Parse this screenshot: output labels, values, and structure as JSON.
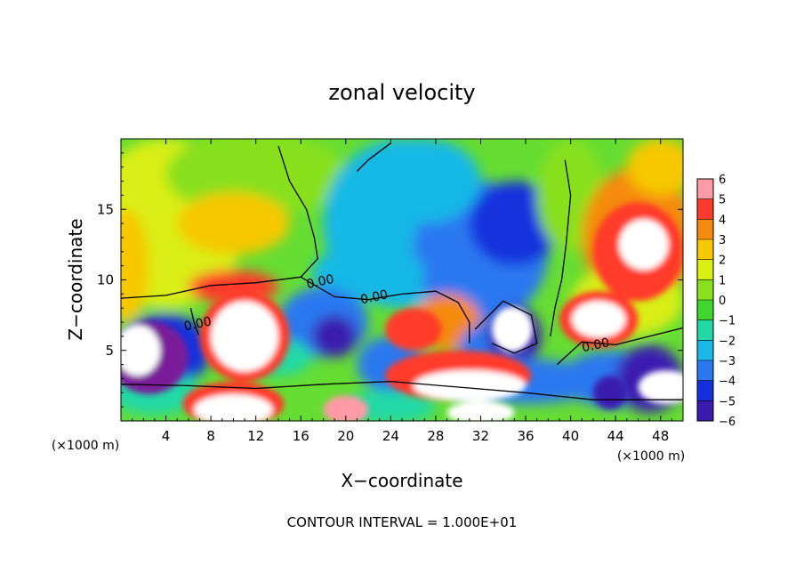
{
  "chart_data": {
    "type": "heatmap",
    "title": "zonal velocity",
    "xlabel": "X−coordinate",
    "ylabel": "Z−coordinate",
    "x_unit_label_left": "(×1000 m)",
    "x_unit_label_right": "(×1000 m)",
    "footer": "CONTOUR INTERVAL = 1.000E+01",
    "xlim": [
      0,
      50
    ],
    "ylim": [
      0,
      20
    ],
    "x_ticks": [
      4,
      8,
      12,
      16,
      20,
      24,
      28,
      32,
      36,
      40,
      44,
      48
    ],
    "y_ticks": [
      5,
      10,
      15
    ],
    "colorbar": {
      "min": -6,
      "max": 6,
      "labels": [
        "6",
        "5",
        "4",
        "3",
        "2",
        "1",
        "0",
        "−1",
        "−2",
        "−3",
        "−4",
        "−5",
        "−6"
      ]
    },
    "contour_labels": [
      {
        "text": "0.00",
        "x": 17.8,
        "y": 9.6
      },
      {
        "text": "0.00",
        "x": 22.6,
        "y": 8.5
      },
      {
        "text": "0.00",
        "x": 6.9,
        "y": 6.6
      },
      {
        "text": "0.00",
        "x": 42.3,
        "y": 5.1
      }
    ],
    "features": [
      {
        "name": "upper-left-warm",
        "x": 10,
        "y": 14,
        "value": 3
      },
      {
        "name": "left-jet-core",
        "x": 11,
        "y": 6,
        "value": 6
      },
      {
        "name": "upper-right-jet",
        "x": 46,
        "y": 12.5,
        "value": 5.5
      },
      {
        "name": "central-cold",
        "x": 33,
        "y": 12,
        "value": -4
      },
      {
        "name": "lower-left-cold",
        "x": 19,
        "y": 6,
        "value": -4.5
      },
      {
        "name": "mid-right-cold",
        "x": 35,
        "y": 6,
        "value": -6
      },
      {
        "name": "lower-center-warm",
        "x": 30,
        "y": 2.5,
        "value": 6
      },
      {
        "name": "bottom-left-cold",
        "x": 2,
        "y": 3.5,
        "value": -6
      },
      {
        "name": "bottom-warm-left",
        "x": 10,
        "y": 1,
        "value": 6
      },
      {
        "name": "right-warm-cell",
        "x": 42,
        "y": 7,
        "value": 6
      }
    ]
  }
}
